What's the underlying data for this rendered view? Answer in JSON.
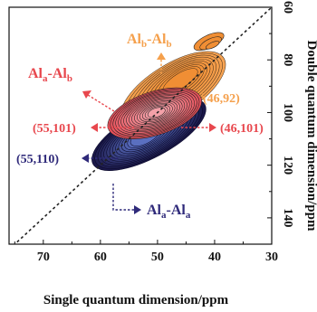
{
  "chart_data": {
    "type": "contour",
    "xlabel": "Single quantum dimension/ppm",
    "ylabel": "Double quantum dimension/ppm",
    "x_reversed": true,
    "y_reversed": true,
    "xlim": [
      76,
      30
    ],
    "ylim": [
      60,
      150
    ],
    "x_ticks": [
      70,
      60,
      50,
      40,
      30
    ],
    "y_ticks": [
      60,
      80,
      100,
      120,
      140
    ],
    "diagonal": "dashed y = 2x",
    "colors": {
      "Al_b-Al_b": "#f5a04c",
      "Al_a-Al_b": "#e8474d",
      "Al_a-Al_a": "#2f2a7a",
      "diagonal": "#222222",
      "frame": "#111111"
    },
    "series": [
      {
        "name": "Alb-Alb",
        "peaks": [
          {
            "x": 46,
            "y": 92
          }
        ]
      },
      {
        "name": "Ala-Alb",
        "peaks": [
          {
            "x": 55,
            "y": 101
          },
          {
            "x": 46,
            "y": 101
          }
        ]
      },
      {
        "name": "Ala-Ala",
        "peaks": [
          {
            "x": 55,
            "y": 110
          }
        ]
      }
    ],
    "annotations": [
      {
        "text": "(46,92)",
        "color": "#f5a04c"
      },
      {
        "text": "(55,101)",
        "color": "#e8474d"
      },
      {
        "text": "(46,101)",
        "color": "#e8474d"
      },
      {
        "text": "(55,110)",
        "color": "#2f2a7a"
      }
    ]
  },
  "labels": {
    "alb_alb": {
      "a": "Al",
      "sa": "b",
      "b": "-Al",
      "sb": "b"
    },
    "ala_alb": {
      "a": "Al",
      "sa": "a",
      "b": "-Al",
      "sb": "b"
    },
    "ala_ala": {
      "a": "Al",
      "sa": "a",
      "b": "-Al",
      "sb": "a"
    }
  }
}
